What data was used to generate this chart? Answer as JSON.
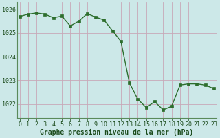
{
  "x": [
    0,
    1,
    2,
    3,
    4,
    5,
    6,
    7,
    8,
    9,
    10,
    11,
    12,
    13,
    14,
    15,
    16,
    17,
    18,
    19,
    20,
    21,
    22,
    23
  ],
  "y": [
    1025.7,
    1025.8,
    1025.85,
    1025.8,
    1025.65,
    1025.72,
    1025.3,
    1025.5,
    1025.82,
    1025.68,
    1025.55,
    1025.1,
    1024.65,
    1022.9,
    1022.2,
    1021.85,
    1022.1,
    1021.75,
    1021.9,
    1022.8,
    1022.85,
    1022.85,
    1022.8,
    1022.65
  ],
  "line_color": "#2d6e2d",
  "marker_color": "#2d6e2d",
  "bg_color": "#cce8e8",
  "grid_v_color": "#c8a8b8",
  "grid_h_color": "#c8a8b8",
  "xlabel": "Graphe pression niveau de la mer (hPa)",
  "xlabel_color": "#1a4a1a",
  "ylim": [
    1021.4,
    1026.3
  ],
  "yticks": [
    1022,
    1023,
    1024,
    1025,
    1026
  ],
  "xticks": [
    0,
    1,
    2,
    3,
    4,
    5,
    6,
    7,
    8,
    9,
    10,
    11,
    12,
    13,
    14,
    15,
    16,
    17,
    18,
    19,
    20,
    21,
    22,
    23
  ],
  "tick_label_color": "#1a4a1a",
  "tick_label_fontsize": 6.0,
  "xlabel_fontsize": 7.0
}
